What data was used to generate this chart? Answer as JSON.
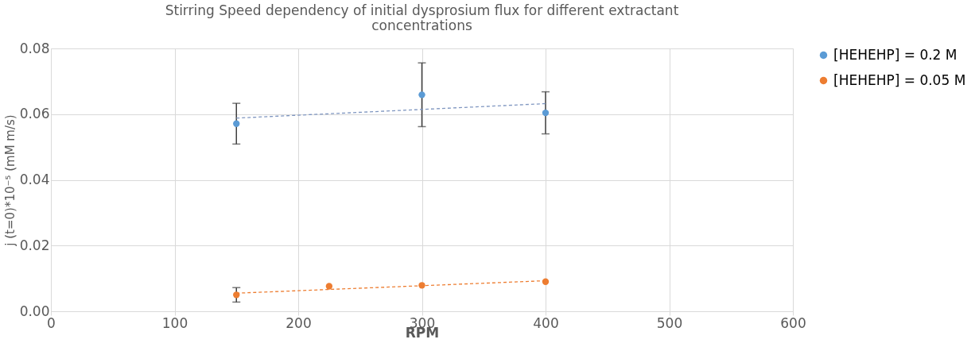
{
  "chart_data": {
    "type": "scatter",
    "title": "Stirring Speed dependency of initial dysprosium flux for different extractant concentrations",
    "xlabel": "RPM",
    "ylabel": "j (t=0)*10⁻⁵ (mM m/s)",
    "series": [
      {
        "name": "[HEHEHP] = 0.2 M",
        "color": "#5b9bd5",
        "x": [
          150,
          300,
          400
        ],
        "values": [
          0.0571,
          0.0659,
          0.0604
        ],
        "errors": [
          0.0062,
          0.0097,
          0.0064
        ],
        "marker": "circle"
      },
      {
        "name": "[HEHEHP] = 0.05 M",
        "color": "#ed7d31",
        "x": [
          150,
          225,
          300,
          400
        ],
        "values": [
          0.005,
          0.0076,
          0.0079,
          0.009
        ],
        "errors": [
          0.0022,
          null,
          null,
          null
        ],
        "marker": "circle"
      },
      {
        "type": "line",
        "color": "#7f96c0",
        "x": [
          150,
          400
        ],
        "values": [
          0.0588,
          0.0632
        ],
        "line_style": "dashed",
        "marker": "none"
      },
      {
        "type": "line",
        "color": "#ed7d31",
        "x": [
          150,
          400
        ],
        "values": [
          0.0055,
          0.0093
        ],
        "line_style": "dashed",
        "marker": "none"
      }
    ],
    "xlim": [
      0,
      600
    ],
    "xticks": [
      0,
      100,
      200,
      300,
      400,
      500,
      600
    ],
    "ylim": [
      0,
      0.08
    ],
    "yticks": [
      {
        "value": 0,
        "label": "0.00"
      },
      {
        "value": 0.02,
        "label": "0.02"
      },
      {
        "value": 0.04,
        "label": "0.04"
      },
      {
        "value": 0.06,
        "label": "0.06"
      },
      {
        "value": 0.08,
        "label": "0.08"
      }
    ],
    "grid": true,
    "legend": "right"
  }
}
